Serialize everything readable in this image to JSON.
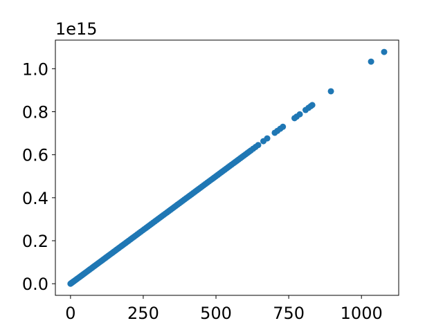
{
  "chart_data": {
    "type": "scatter",
    "title": "",
    "xlabel": "",
    "ylabel": "",
    "offset_label": "1e15",
    "xlim": [
      -52,
      1128
    ],
    "ylim": [
      -0.054,
      1.133
    ],
    "x_ticks": [
      0,
      250,
      500,
      750,
      1000
    ],
    "x_tick_labels": [
      "0",
      "250",
      "500",
      "750",
      "1000"
    ],
    "y_ticks": [
      0.0,
      0.2,
      0.4,
      0.6,
      0.8,
      1.0
    ],
    "y_tick_labels": [
      "0.0",
      "0.2",
      "0.4",
      "0.6",
      "0.8",
      "1.0"
    ],
    "grid": false,
    "marker_color": "#1f77b4",
    "series": [
      {
        "x": [
          0,
          2,
          4,
          6,
          8,
          10,
          12,
          15,
          18,
          20,
          23,
          26,
          30,
          34,
          38,
          42,
          46,
          50,
          55,
          60,
          65,
          70,
          75,
          80,
          85,
          90,
          95,
          100,
          105,
          110,
          115,
          120,
          125,
          130,
          135,
          140,
          145,
          150,
          155,
          160,
          165,
          170,
          175,
          180,
          185,
          190,
          195,
          200,
          206,
          212,
          218,
          224,
          230,
          236,
          242,
          248,
          254,
          260,
          266,
          272,
          278,
          284,
          290,
          296,
          302,
          308,
          314,
          320,
          326,
          332,
          338,
          344,
          350,
          356,
          362,
          368,
          374,
          380,
          386,
          392,
          398,
          404,
          410,
          416,
          422,
          428,
          434,
          440,
          446,
          452,
          458,
          464,
          470,
          476,
          482,
          488,
          494,
          500,
          506,
          512,
          518,
          524,
          530,
          536,
          542,
          548,
          554,
          560,
          566,
          572,
          578,
          584,
          590,
          596,
          602,
          608,
          614,
          620,
          628,
          636,
          645,
          663,
          676,
          702,
          711,
          721,
          730,
          770,
          777,
          788,
          808,
          818,
          826,
          831,
          895,
          1033,
          1078
        ],
        "y": [
          0.0,
          0.002,
          0.004,
          0.006,
          0.008,
          0.01,
          0.012,
          0.015,
          0.018,
          0.02,
          0.023,
          0.026,
          0.03,
          0.034,
          0.038,
          0.042,
          0.046,
          0.05,
          0.055,
          0.06,
          0.065,
          0.07,
          0.075,
          0.08,
          0.085,
          0.09,
          0.095,
          0.1,
          0.105,
          0.11,
          0.115,
          0.12,
          0.125,
          0.13,
          0.135,
          0.14,
          0.145,
          0.15,
          0.155,
          0.16,
          0.165,
          0.17,
          0.175,
          0.18,
          0.185,
          0.19,
          0.195,
          0.2,
          0.206,
          0.212,
          0.218,
          0.224,
          0.23,
          0.236,
          0.242,
          0.248,
          0.254,
          0.26,
          0.266,
          0.272,
          0.278,
          0.284,
          0.29,
          0.296,
          0.302,
          0.308,
          0.314,
          0.32,
          0.326,
          0.332,
          0.338,
          0.344,
          0.35,
          0.356,
          0.362,
          0.368,
          0.374,
          0.38,
          0.386,
          0.392,
          0.398,
          0.404,
          0.41,
          0.416,
          0.422,
          0.428,
          0.434,
          0.44,
          0.446,
          0.452,
          0.458,
          0.464,
          0.47,
          0.476,
          0.482,
          0.488,
          0.494,
          0.5,
          0.506,
          0.512,
          0.518,
          0.524,
          0.53,
          0.536,
          0.542,
          0.548,
          0.554,
          0.56,
          0.566,
          0.572,
          0.578,
          0.584,
          0.59,
          0.596,
          0.602,
          0.608,
          0.614,
          0.62,
          0.628,
          0.636,
          0.645,
          0.663,
          0.676,
          0.702,
          0.711,
          0.721,
          0.73,
          0.77,
          0.777,
          0.788,
          0.808,
          0.818,
          0.826,
          0.831,
          0.895,
          1.033,
          1.078
        ]
      }
    ]
  }
}
